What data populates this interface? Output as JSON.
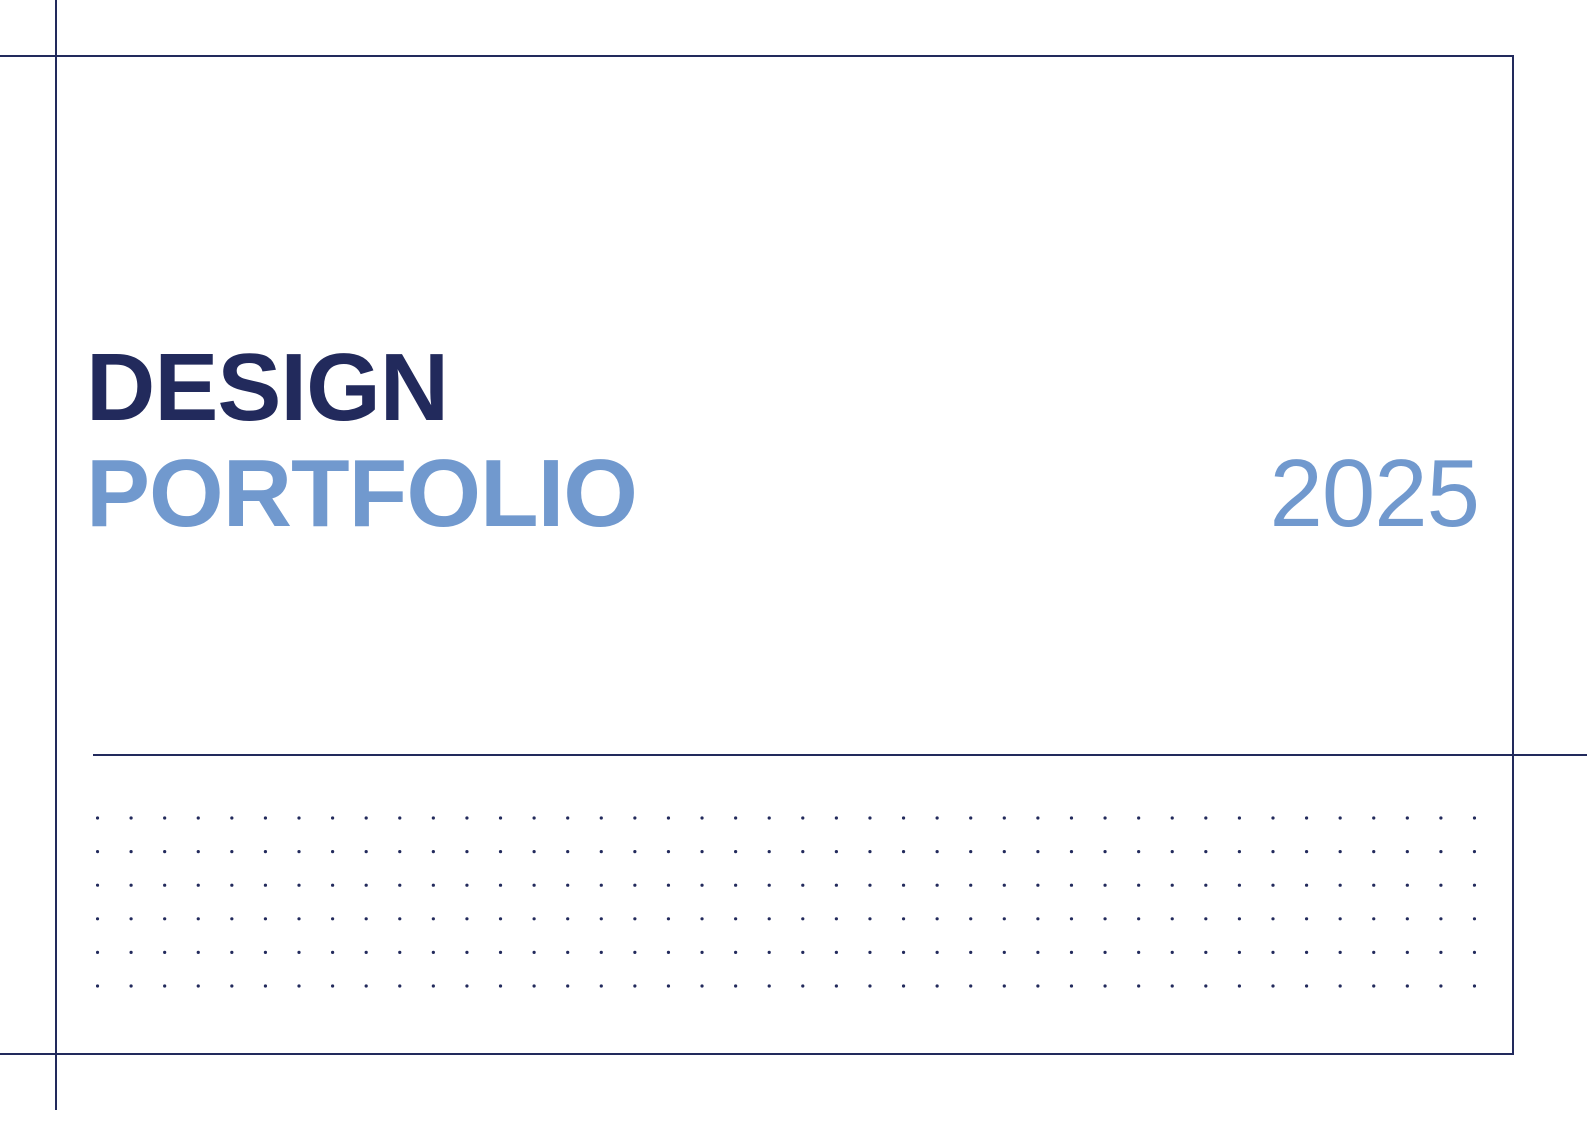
{
  "document": {
    "title_line1": "DESIGN",
    "title_line2": "PORTFOLIO",
    "year": "2025"
  },
  "colors": {
    "navy": "#222a5c",
    "light_blue": "#7199ce",
    "background": "#ffffff"
  }
}
